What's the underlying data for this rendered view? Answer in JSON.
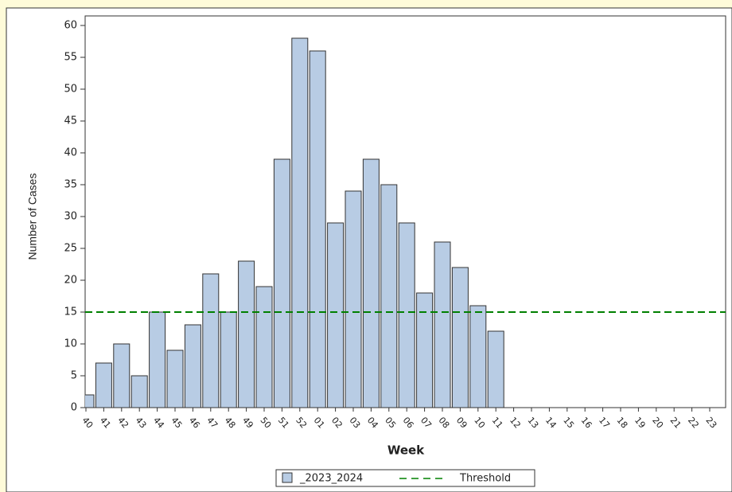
{
  "chart_data": {
    "type": "bar",
    "x_label": "Week",
    "y_label": "Number of Cases",
    "categories": [
      "40",
      "41",
      "42",
      "43",
      "44",
      "45",
      "46",
      "47",
      "48",
      "49",
      "50",
      "51",
      "52",
      "01",
      "02",
      "03",
      "04",
      "05",
      "06",
      "07",
      "08",
      "09",
      "10",
      "11",
      "12",
      "13",
      "14",
      "15",
      "16",
      "17",
      "18",
      "19",
      "20",
      "21",
      "22",
      "23"
    ],
    "series": [
      {
        "name": "_2023_2024",
        "color": "#b8cce4",
        "values": [
          2,
          7,
          10,
          5,
          15,
          9,
          13,
          21,
          15,
          23,
          19,
          39,
          58,
          56,
          29,
          34,
          39,
          35,
          29,
          18,
          26,
          22,
          16,
          12,
          null,
          null,
          null,
          null,
          null,
          null,
          null,
          null,
          null,
          null,
          null,
          null
        ]
      }
    ],
    "threshold": {
      "name": "Threshold",
      "value": 15,
      "color": "#008000"
    },
    "ylim": [
      0,
      60
    ],
    "yticks": [
      0,
      5,
      10,
      15,
      20,
      25,
      30,
      35,
      40,
      45,
      50,
      55,
      60
    ]
  }
}
